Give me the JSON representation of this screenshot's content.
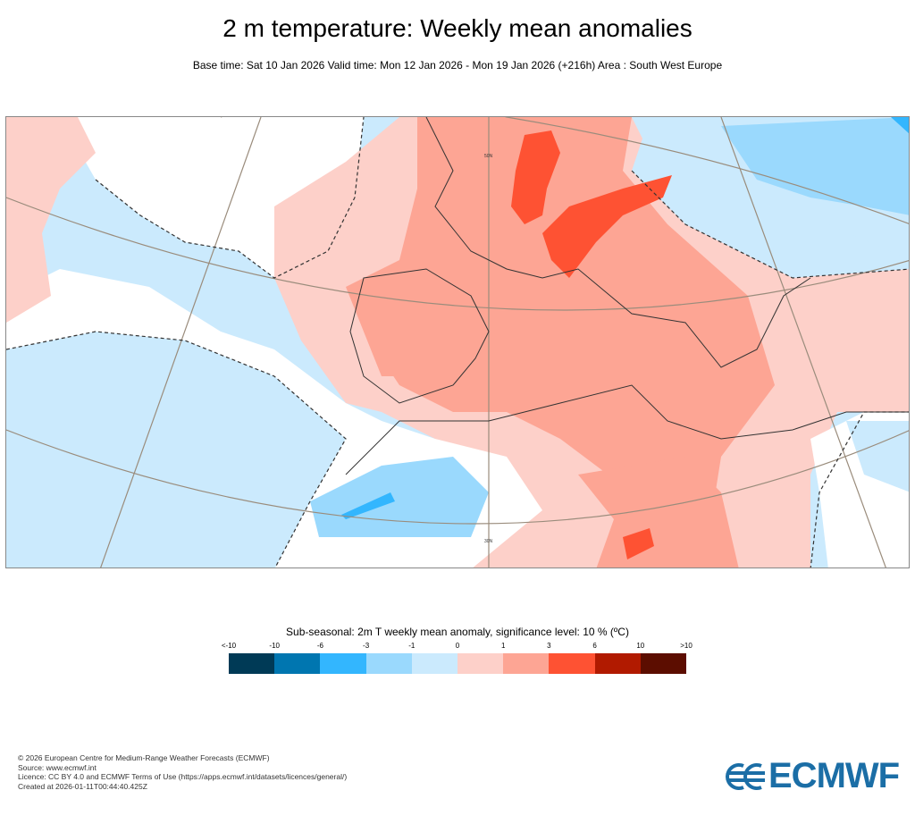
{
  "title": "2 m temperature: Weekly mean anomalies",
  "subtitle": "Base time: Sat 10 Jan 2026 Valid time: Mon 12 Jan 2026 - Mon 19 Jan 2026 (+216h) Area : South West Europe",
  "map": {
    "lat_labels": [
      "50N",
      "30N"
    ]
  },
  "legend": {
    "title": "Sub-seasonal: 2m T weekly mean anomaly, significance level: 10 % (ºC)",
    "labels": [
      "<-10",
      "-10",
      "-6",
      "-3",
      "-1",
      "0",
      "1",
      "3",
      "6",
      "10",
      ">10"
    ],
    "colors": [
      "#003a56",
      "#0076b0",
      "#33b6fe",
      "#9ad9fd",
      "#cbeafd",
      "#fdd0c9",
      "#fda594",
      "#fe5233",
      "#b11a00",
      "#5c0d00"
    ]
  },
  "footer": {
    "line1": "© 2026 European Centre for Medium-Range Weather Forecasts (ECMWF)",
    "line2": "Source: www.ecmwf.int",
    "line3": "Licence: CC BY 4.0 and ECMWF Terms of Use (https://apps.ecmwf.int/datasets/licences/general/)",
    "line4": "Created at 2026-01-11T00:44:40.425Z"
  },
  "logo": {
    "text": "ECMWF",
    "icon": "ecmwf-logo-icon"
  }
}
